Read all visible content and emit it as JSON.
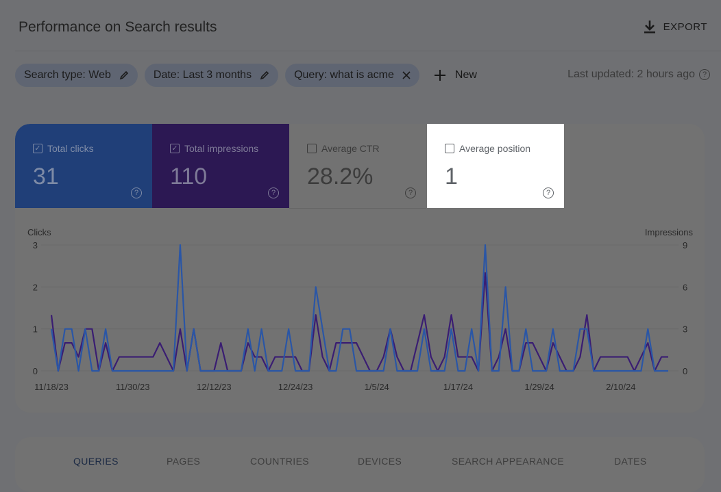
{
  "header": {
    "title": "Performance on Search results",
    "export_label": "EXPORT",
    "export_icon": "download-icon"
  },
  "filters": {
    "chips": [
      {
        "label": "Search type: Web",
        "icon": "pencil-icon"
      },
      {
        "label": "Date: Last 3 months",
        "icon": "pencil-icon"
      },
      {
        "label": "Query: what is acme",
        "icon": "close-icon"
      }
    ],
    "new_label": "New",
    "last_updated": "Last updated: 2 hours ago"
  },
  "metrics": [
    {
      "label": "Total clicks",
      "value": "31",
      "checked": true,
      "color": "#203f78"
    },
    {
      "label": "Total impressions",
      "value": "110",
      "checked": true,
      "color": "#2c1853"
    },
    {
      "label": "Average CTR",
      "value": "28.2%",
      "checked": false
    },
    {
      "label": "Average position",
      "value": "1",
      "checked": false,
      "highlighted": true
    }
  ],
  "chart_data": {
    "type": "line",
    "ylabel_left": "Clicks",
    "ylabel_right": "Impressions",
    "ylim_left": [
      0,
      3
    ],
    "yticks_left": [
      "0",
      "1",
      "2",
      "3"
    ],
    "ylim_right": [
      0,
      9
    ],
    "yticks_right": [
      "0",
      "3",
      "6",
      "9"
    ],
    "xticks": [
      "11/18/23",
      "11/30/23",
      "12/12/23",
      "12/24/23",
      "1/5/24",
      "1/17/24",
      "1/29/24",
      "2/10/24"
    ],
    "grid": true,
    "x": [
      "11/18/23",
      "11/19/23",
      "11/20/23",
      "11/21/23",
      "11/22/23",
      "11/23/23",
      "11/24/23",
      "11/25/23",
      "11/26/23",
      "11/27/23",
      "11/28/23",
      "11/29/23",
      "11/30/23",
      "12/1/23",
      "12/2/23",
      "12/3/23",
      "12/4/23",
      "12/5/23",
      "12/6/23",
      "12/7/23",
      "12/8/23",
      "12/9/23",
      "12/10/23",
      "12/11/23",
      "12/12/23",
      "12/13/23",
      "12/14/23",
      "12/15/23",
      "12/16/23",
      "12/17/23",
      "12/18/23",
      "12/19/23",
      "12/20/23",
      "12/21/23",
      "12/22/23",
      "12/23/23",
      "12/24/23",
      "12/25/23",
      "12/26/23",
      "12/27/23",
      "12/28/23",
      "12/29/23",
      "12/30/23",
      "12/31/23",
      "1/1/24",
      "1/2/24",
      "1/3/24",
      "1/4/24",
      "1/5/24",
      "1/6/24",
      "1/7/24",
      "1/8/24",
      "1/9/24",
      "1/10/24",
      "1/11/24",
      "1/12/24",
      "1/13/24",
      "1/14/24",
      "1/15/24",
      "1/16/24",
      "1/17/24",
      "1/18/24",
      "1/19/24",
      "1/20/24",
      "1/21/24",
      "1/22/24",
      "1/23/24",
      "1/24/24",
      "1/25/24",
      "1/26/24",
      "1/27/24",
      "1/28/24",
      "1/29/24",
      "1/30/24",
      "1/31/24",
      "2/1/24",
      "2/2/24",
      "2/3/24",
      "2/4/24",
      "2/5/24",
      "2/6/24",
      "2/7/24",
      "2/8/24",
      "2/9/24",
      "2/10/24",
      "2/11/24",
      "2/12/24",
      "2/13/24",
      "2/14/24",
      "2/15/24",
      "2/16/24",
      "2/17/24"
    ],
    "series": [
      {
        "name": "Clicks",
        "axis": "left",
        "color": "#2a56a6",
        "values": [
          1,
          0,
          1,
          1,
          0,
          1,
          0,
          0,
          1,
          0,
          0,
          0,
          0,
          0,
          0,
          0,
          0,
          0,
          0,
          3,
          0,
          1,
          0,
          0,
          0,
          0,
          0,
          0,
          0,
          1,
          0,
          1,
          0,
          0,
          0,
          1,
          0,
          0,
          0,
          2,
          1,
          0,
          0,
          1,
          1,
          0,
          0,
          0,
          0,
          0,
          1,
          0,
          0,
          0,
          0,
          1,
          0,
          0,
          0,
          1,
          0,
          0,
          1,
          0,
          3,
          0,
          0,
          2,
          0,
          0,
          1,
          0,
          0,
          0,
          1,
          0,
          0,
          0,
          1,
          1,
          0,
          0,
          0,
          0,
          0,
          0,
          0,
          0,
          1,
          0,
          0,
          0
        ]
      },
      {
        "name": "Impressions",
        "axis": "right",
        "color": "#3a1d72",
        "values": [
          4,
          0,
          2,
          2,
          1,
          3,
          3,
          0,
          2,
          0,
          1,
          1,
          1,
          1,
          1,
          1,
          2,
          1,
          0,
          3,
          0,
          3,
          0,
          0,
          0,
          2,
          0,
          0,
          0,
          2,
          1,
          1,
          0,
          1,
          1,
          1,
          1,
          0,
          0,
          4,
          1,
          0,
          2,
          2,
          2,
          2,
          1,
          0,
          0,
          1,
          3,
          1,
          0,
          0,
          2,
          4,
          1,
          0,
          1,
          4,
          1,
          1,
          1,
          0,
          7,
          0,
          1,
          3,
          0,
          0,
          2,
          2,
          1,
          0,
          2,
          1,
          0,
          0,
          1,
          4,
          0,
          1,
          1,
          1,
          1,
          1,
          0,
          1,
          2,
          0,
          1,
          1
        ]
      }
    ]
  },
  "tabs": [
    {
      "label": "QUERIES",
      "active": true
    },
    {
      "label": "PAGES"
    },
    {
      "label": "COUNTRIES"
    },
    {
      "label": "DEVICES"
    },
    {
      "label": "SEARCH APPEARANCE"
    },
    {
      "label": "DATES"
    }
  ]
}
